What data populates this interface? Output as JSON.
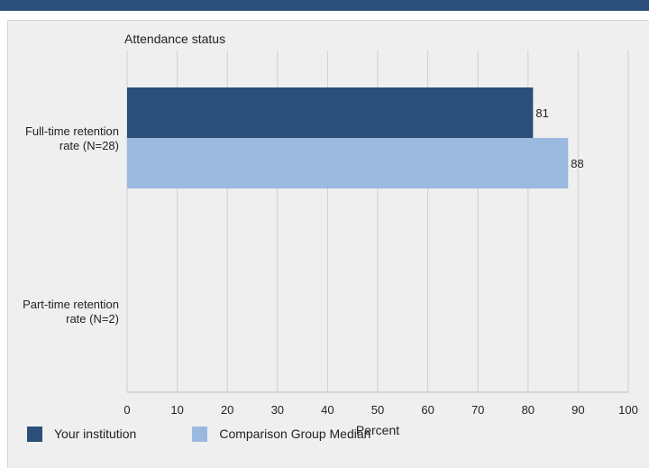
{
  "chart_data": {
    "type": "bar",
    "orientation": "horizontal",
    "title": "Attendance status",
    "xlabel": "Percent",
    "ylabel": "",
    "xlim": [
      0,
      100
    ],
    "xticks": [
      "0",
      "10",
      "20",
      "30",
      "40",
      "50",
      "60",
      "70",
      "80",
      "90",
      "100"
    ],
    "grid": true,
    "legend_position": "bottom",
    "categories": [
      [
        "Full-time retention",
        "rate (N=28)"
      ],
      [
        "Part-time retention",
        "rate (N=2)"
      ]
    ],
    "series": [
      {
        "name": "Your institution",
        "color": "#2b4f78",
        "values": [
          81,
          null
        ]
      },
      {
        "name": "Comparison Group Median",
        "color": "#9bb9df",
        "values": [
          88,
          null
        ]
      }
    ]
  }
}
